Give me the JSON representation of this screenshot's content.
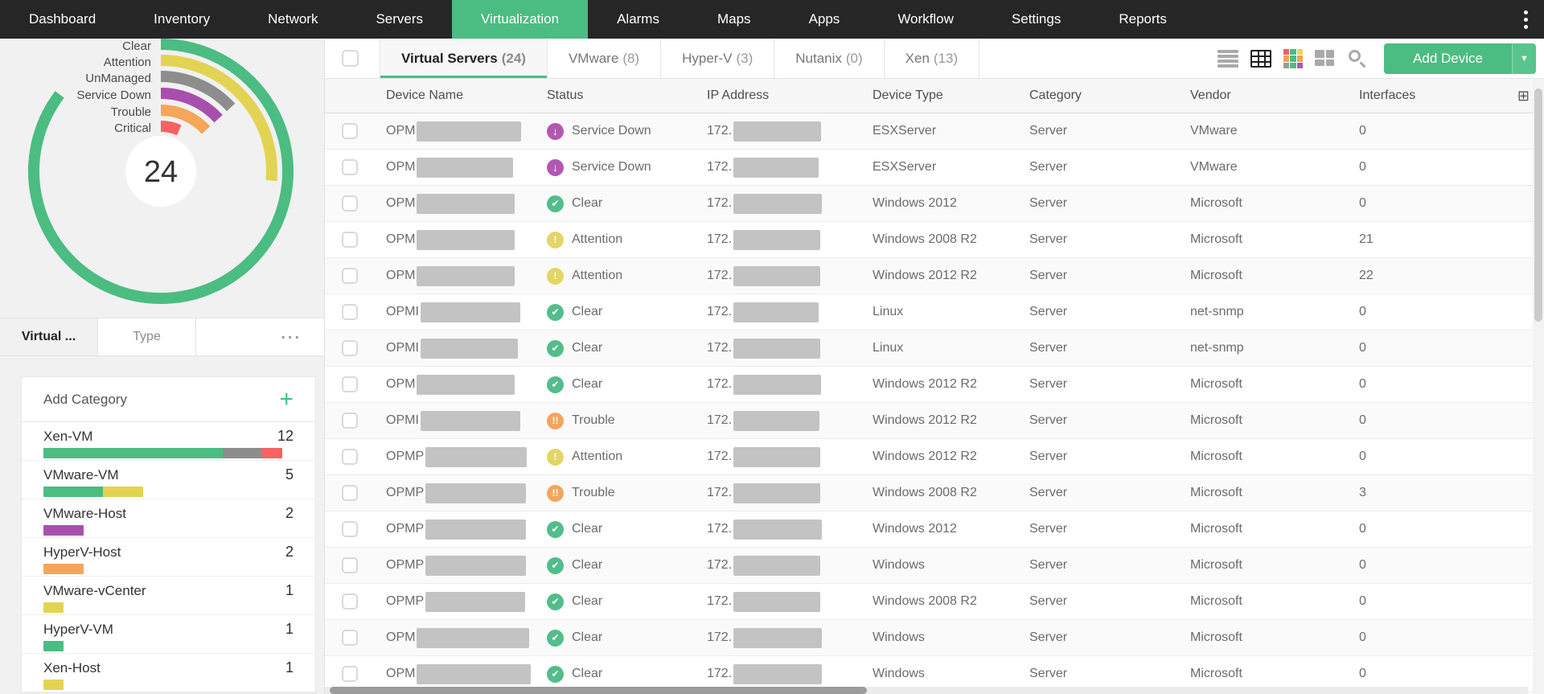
{
  "nav": {
    "items": [
      {
        "label": "Dashboard",
        "active": false
      },
      {
        "label": "Inventory",
        "active": false
      },
      {
        "label": "Network",
        "active": false
      },
      {
        "label": "Servers",
        "active": false
      },
      {
        "label": "Virtualization",
        "active": true
      },
      {
        "label": "Alarms",
        "active": false
      },
      {
        "label": "Maps",
        "active": false
      },
      {
        "label": "Apps",
        "active": false
      },
      {
        "label": "Workflow",
        "active": false
      },
      {
        "label": "Settings",
        "active": false
      },
      {
        "label": "Reports",
        "active": false
      }
    ],
    "kebab_icon": "kebab-menu-icon"
  },
  "summary_chart": {
    "type": "radial-bar",
    "total": 24,
    "center_label": "24",
    "legend_position": "left",
    "series": [
      {
        "label": "Clear",
        "count": 13,
        "color": "#4bbc82"
      },
      {
        "label": "Attention",
        "count": 4,
        "color": "#e2d452"
      },
      {
        "label": "UnManaged",
        "count": 2,
        "color": "#8d8d8d"
      },
      {
        "label": "Service Down",
        "count": 2,
        "color": "#a84fae"
      },
      {
        "label": "Trouble",
        "count": 2,
        "color": "#f5a65a"
      },
      {
        "label": "Critical",
        "count": 1,
        "color": "#f86262"
      }
    ]
  },
  "side_tabs": {
    "items": [
      {
        "label": "Virtual ...",
        "active": true
      },
      {
        "label": "Type",
        "active": false
      }
    ],
    "more_label": "..."
  },
  "category_panel": {
    "header": "Add Category",
    "add_icon": "plus-icon",
    "max_count": 12,
    "items": [
      {
        "name": "Xen-VM",
        "count": 12,
        "segments": [
          {
            "color": "#4bbc82",
            "value": 9
          },
          {
            "color": "#8d8d8d",
            "value": 2
          },
          {
            "color": "#f86262",
            "value": 1
          }
        ]
      },
      {
        "name": "VMware-VM",
        "count": 5,
        "segments": [
          {
            "color": "#4bbc82",
            "value": 3
          },
          {
            "color": "#e2d452",
            "value": 2
          }
        ]
      },
      {
        "name": "VMware-Host",
        "count": 2,
        "segments": [
          {
            "color": "#a84fae",
            "value": 2
          }
        ]
      },
      {
        "name": "HyperV-Host",
        "count": 2,
        "segments": [
          {
            "color": "#f5a65a",
            "value": 2
          }
        ]
      },
      {
        "name": "VMware-vCenter",
        "count": 1,
        "segments": [
          {
            "color": "#e2d452",
            "value": 1
          }
        ]
      },
      {
        "name": "HyperV-VM",
        "count": 1,
        "segments": [
          {
            "color": "#4bbc82",
            "value": 1
          }
        ]
      },
      {
        "name": "Xen-Host",
        "count": 1,
        "segments": [
          {
            "color": "#e2d452",
            "value": 1
          }
        ]
      }
    ]
  },
  "content_tabs": [
    {
      "label": "Virtual Servers",
      "count": "(24)",
      "active": true
    },
    {
      "label": "VMware",
      "count": "(8)",
      "active": false
    },
    {
      "label": "Hyper-V",
      "count": "(3)",
      "active": false
    },
    {
      "label": "Nutanix",
      "count": "(0)",
      "active": false
    },
    {
      "label": "Xen",
      "count": "(13)",
      "active": false
    }
  ],
  "toolbar": {
    "view_icons": [
      "list-view-icon",
      "table-view-icon",
      "heatmap-view-icon",
      "tile-view-icon",
      "search-icon"
    ],
    "active_view": "table-view-icon",
    "add_device_label": "Add Device",
    "add_device_color": "#4bbc82"
  },
  "statuses": {
    "clear": {
      "label": "Clear",
      "color": "#52bd8b",
      "glyph": "✔"
    },
    "attention": {
      "label": "Attention",
      "color": "#e3d567",
      "glyph": "!"
    },
    "trouble": {
      "label": "Trouble",
      "color": "#f3a55f",
      "glyph": "!!"
    },
    "service_down": {
      "label": "Service Down",
      "color": "#b158b4",
      "glyph": "↓"
    }
  },
  "table": {
    "columns": [
      "Device Name",
      "Status",
      "IP Address",
      "Device Type",
      "Category",
      "Vendor",
      "Interfaces"
    ],
    "column_chooser_icon": "column-chooser-icon",
    "rows": [
      {
        "name_prefix": "OPM",
        "status": "service_down",
        "ip_prefix": "172.",
        "device_type": "ESXServer",
        "category": "Server",
        "vendor": "VMware",
        "interfaces": "0",
        "nw": 130,
        "iw": 109
      },
      {
        "name_prefix": "OPM",
        "status": "service_down",
        "ip_prefix": "172.",
        "device_type": "ESXServer",
        "category": "Server",
        "vendor": "VMware",
        "interfaces": "0",
        "nw": 120,
        "iw": 106
      },
      {
        "name_prefix": "OPM",
        "status": "clear",
        "ip_prefix": "172.",
        "device_type": "Windows 2012",
        "category": "Server",
        "vendor": "Microsoft",
        "interfaces": "0",
        "nw": 122,
        "iw": 110
      },
      {
        "name_prefix": "OPM",
        "status": "attention",
        "ip_prefix": "172.",
        "device_type": "Windows 2008 R2",
        "category": "Server",
        "vendor": "Microsoft",
        "interfaces": "21",
        "nw": 122,
        "iw": 108
      },
      {
        "name_prefix": "OPM",
        "status": "attention",
        "ip_prefix": "172.",
        "device_type": "Windows 2012 R2",
        "category": "Server",
        "vendor": "Microsoft",
        "interfaces": "22",
        "nw": 122,
        "iw": 108
      },
      {
        "name_prefix": "OPMI",
        "status": "clear",
        "ip_prefix": "172.",
        "device_type": "Linux",
        "category": "Server",
        "vendor": "net-snmp",
        "interfaces": "0",
        "nw": 124,
        "iw": 106
      },
      {
        "name_prefix": "OPMI",
        "status": "clear",
        "ip_prefix": "172.",
        "device_type": "Linux",
        "category": "Server",
        "vendor": "net-snmp",
        "interfaces": "0",
        "nw": 121,
        "iw": 108
      },
      {
        "name_prefix": "OPM",
        "status": "clear",
        "ip_prefix": "172.",
        "device_type": "Windows 2012 R2",
        "category": "Server",
        "vendor": "Microsoft",
        "interfaces": "0",
        "nw": 122,
        "iw": 109
      },
      {
        "name_prefix": "OPMI",
        "status": "trouble",
        "ip_prefix": "172.",
        "device_type": "Windows 2012 R2",
        "category": "Server",
        "vendor": "Microsoft",
        "interfaces": "0",
        "nw": 124,
        "iw": 107
      },
      {
        "name_prefix": "OPMP",
        "status": "attention",
        "ip_prefix": "172.",
        "device_type": "Windows 2012 R2",
        "category": "Server",
        "vendor": "Microsoft",
        "interfaces": "0",
        "nw": 126,
        "iw": 108
      },
      {
        "name_prefix": "OPMP",
        "status": "trouble",
        "ip_prefix": "172.",
        "device_type": "Windows 2008 R2",
        "category": "Server",
        "vendor": "Microsoft",
        "interfaces": "3",
        "nw": 125,
        "iw": 108
      },
      {
        "name_prefix": "OPMP",
        "status": "clear",
        "ip_prefix": "172.",
        "device_type": "Windows 2012",
        "category": "Server",
        "vendor": "Microsoft",
        "interfaces": "0",
        "nw": 125,
        "iw": 110
      },
      {
        "name_prefix": "OPMP",
        "status": "clear",
        "ip_prefix": "172.",
        "device_type": "Windows",
        "category": "Server",
        "vendor": "Microsoft",
        "interfaces": "0",
        "nw": 125,
        "iw": 108
      },
      {
        "name_prefix": "OPMP",
        "status": "clear",
        "ip_prefix": "172.",
        "device_type": "Windows 2008 R2",
        "category": "Server",
        "vendor": "Microsoft",
        "interfaces": "0",
        "nw": 124,
        "iw": 108
      },
      {
        "name_prefix": "OPM",
        "status": "clear",
        "ip_prefix": "172.",
        "device_type": "Windows",
        "category": "Server",
        "vendor": "Microsoft",
        "interfaces": "0",
        "nw": 140,
        "iw": 110
      },
      {
        "name_prefix": "OPM",
        "status": "clear",
        "ip_prefix": "172.",
        "device_type": "Windows",
        "category": "Server",
        "vendor": "Microsoft",
        "interfaces": "0",
        "nw": 142,
        "iw": 110
      }
    ]
  }
}
